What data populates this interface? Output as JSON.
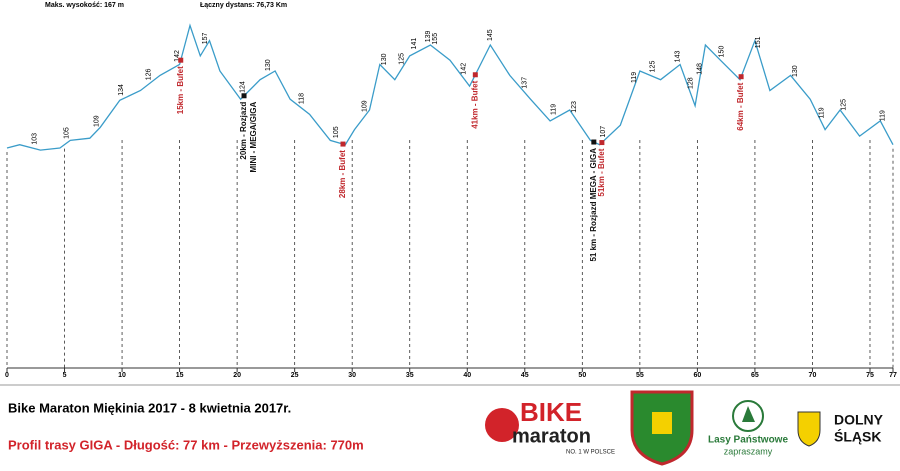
{
  "chart_data": {
    "type": "line",
    "stats": [
      "Maks. wysokość: 167 m",
      "Łączny dystans: 76,73 Km"
    ],
    "x": [
      0,
      1.1,
      2.9,
      4.6,
      5.5,
      7.2,
      8.1,
      9.8,
      11.6,
      13.3,
      15.0,
      15.9,
      16.8,
      17.6,
      18.5,
      20.3,
      22.0,
      23.3,
      24.6,
      26.3,
      28.1,
      29.4,
      30.2,
      31.5,
      32.4,
      33.7,
      35.0,
      36.8,
      38.5,
      40.2,
      42.0,
      43.7,
      45.5,
      47.2,
      48.9,
      50.7,
      51.5,
      53.3,
      55.0,
      56.8,
      58.5,
      59.8,
      60.7,
      62.0,
      63.7,
      65.0,
      66.3,
      68.1,
      69.8,
      71.1,
      72.4,
      74.1,
      75.9,
      77.0
    ],
    "values": [
      101.5,
      103,
      100.5,
      101.5,
      105,
      106,
      111,
      123.5,
      128,
      135,
      140,
      158,
      144,
      151,
      137,
      124,
      133,
      137,
      124,
      117,
      105,
      103,
      110,
      119,
      140,
      133,
      144,
      149,
      142,
      130,
      149,
      135,
      124,
      114,
      119,
      105,
      103,
      112,
      137,
      133,
      140,
      121,
      149,
      142,
      133,
      151,
      128,
      135,
      124,
      110,
      119,
      107,
      114,
      103
    ],
    "color": "#3a9cc9",
    "xlim": [
      0,
      77
    ],
    "ylim": [
      0,
      167
    ],
    "xticks": [
      0,
      5,
      10,
      15,
      20,
      25,
      30,
      35,
      40,
      45,
      50,
      55,
      60,
      65,
      70,
      75,
      77
    ],
    "point_labels": [
      {
        "x": 2.4,
        "value": 103
      },
      {
        "x": 5.2,
        "value": 105
      },
      {
        "x": 7.8,
        "value": 109
      },
      {
        "x": 9.9,
        "value": 134
      },
      {
        "x": 12.3,
        "value": 126
      },
      {
        "x": 14.8,
        "value": 142
      },
      {
        "x": 17.2,
        "value": 157
      },
      {
        "x": 20.5,
        "value": 124
      },
      {
        "x": 22.7,
        "value": 130
      },
      {
        "x": 25.6,
        "value": 118
      },
      {
        "x": 28.6,
        "value": 105
      },
      {
        "x": 31.1,
        "value": 109
      },
      {
        "x": 32.8,
        "value": 130
      },
      {
        "x": 34.3,
        "value": 125
      },
      {
        "x": 35.4,
        "value": 141
      },
      {
        "x": 36.6,
        "value": 139
      },
      {
        "x": 37.2,
        "value": 155
      },
      {
        "x": 39.7,
        "value": 142
      },
      {
        "x": 42.0,
        "value": 145
      },
      {
        "x": 45.0,
        "value": 137
      },
      {
        "x": 47.5,
        "value": 119
      },
      {
        "x": 49.3,
        "value": 123
      },
      {
        "x": 51.8,
        "value": 107
      },
      {
        "x": 54.5,
        "value": 119
      },
      {
        "x": 56.1,
        "value": 125
      },
      {
        "x": 58.3,
        "value": 143
      },
      {
        "x": 59.4,
        "value": 128
      },
      {
        "x": 60.2,
        "value": 148
      },
      {
        "x": 62.1,
        "value": 150
      },
      {
        "x": 65.3,
        "value": 151
      },
      {
        "x": 68.5,
        "value": 130
      },
      {
        "x": 70.8,
        "value": 119
      },
      {
        "x": 72.7,
        "value": 125
      },
      {
        "x": 76.1,
        "value": 119
      }
    ],
    "annotations": [
      {
        "x": 15.1,
        "color": "#c0282d",
        "lines": [
          "15km - Bufet"
        ]
      },
      {
        "x": 20.6,
        "color": "#111111",
        "lines": [
          "20km - Rozjazd",
          "MINI - MEGA/GIGA"
        ]
      },
      {
        "x": 29.2,
        "color": "#c0282d",
        "lines": [
          "28km - Bufet"
        ]
      },
      {
        "x": 40.7,
        "color": "#c0282d",
        "lines": [
          "41km - Bufet"
        ]
      },
      {
        "x": 51.0,
        "color": "#111111",
        "lines": [
          "51 km - Rozjazd MEGA - GIGA"
        ]
      },
      {
        "x": 51.7,
        "color": "#c0282d",
        "lines": [
          "51km - Bufet"
        ]
      },
      {
        "x": 63.8,
        "color": "#c0282d",
        "lines": [
          "64km - Bufet"
        ]
      }
    ]
  },
  "footer": {
    "title": "Bike Maraton Miękinia 2017 - 8 kwietnia 2017r.",
    "subtitle": "Profil trasy GIGA - Długość: 77 km - Przewyższenia: 770m"
  },
  "logos": {
    "bike": "BIKE",
    "maraton": "maraton",
    "slogan": "NO. 1 W POLSCE",
    "lasy": "Lasy Państwowe",
    "lasy_sub": "zapraszamy",
    "dolny": "DOLNY",
    "slask": "ŚLĄSK"
  }
}
